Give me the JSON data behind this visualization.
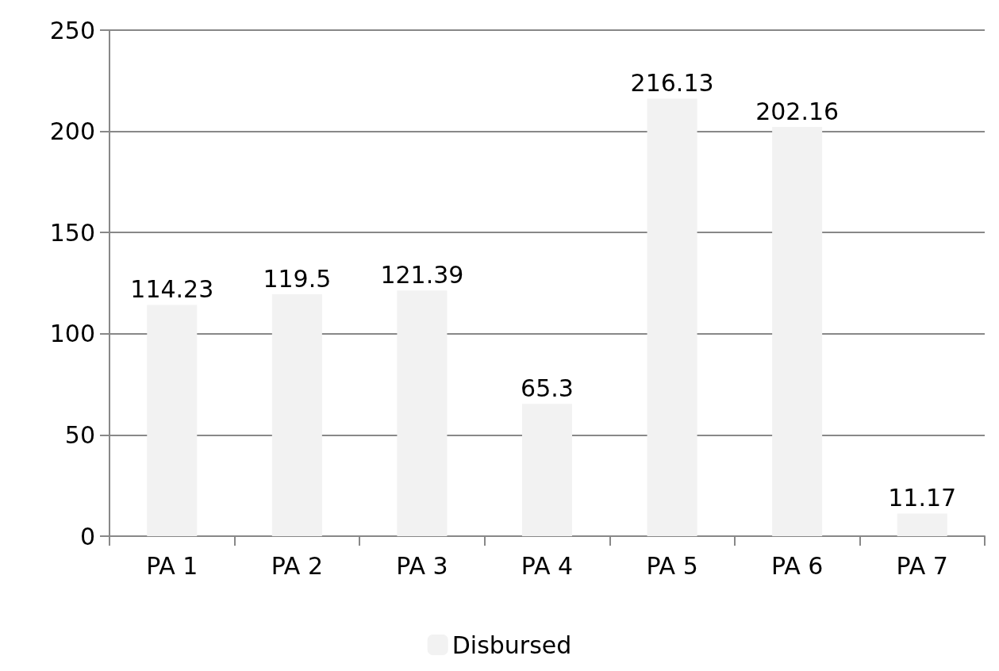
{
  "chart_data": {
    "type": "bar",
    "categories": [
      "PA 1",
      "PA 2",
      "PA 3",
      "PA 4",
      "PA 5",
      "PA 6",
      "PA 7"
    ],
    "series": [
      {
        "name": "Disbursed",
        "color": "#f2f2f2",
        "values": [
          114.23,
          119.5,
          121.39,
          65.3,
          216.13,
          202.16,
          11.17
        ]
      }
    ],
    "ylim": [
      0,
      250
    ],
    "yticks": [
      0,
      50,
      100,
      150,
      200,
      250
    ],
    "grid": "y",
    "legend": "bottom",
    "data_labels": true
  }
}
